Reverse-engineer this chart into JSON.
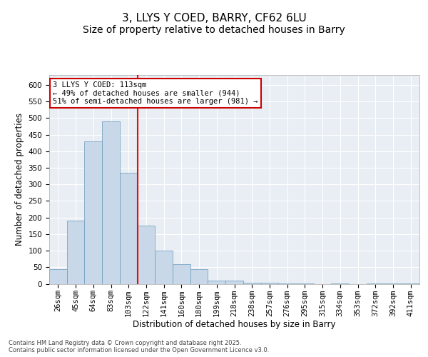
{
  "title1": "3, LLYS Y COED, BARRY, CF62 6LU",
  "title2": "Size of property relative to detached houses in Barry",
  "xlabel": "Distribution of detached houses by size in Barry",
  "ylabel": "Number of detached properties",
  "bar_color": "#c8d8e8",
  "bar_edge_color": "#6699bb",
  "background_color": "#e8eef4",
  "grid_color": "#ffffff",
  "red_line_x": 4,
  "annotation_text": "3 LLYS Y COED: 113sqm\n← 49% of detached houses are smaller (944)\n51% of semi-detached houses are larger (981) →",
  "annotation_box_color": "#ffffff",
  "annotation_box_edge": "#cc0000",
  "categories": [
    "26sqm",
    "45sqm",
    "64sqm",
    "83sqm",
    "103sqm",
    "122sqm",
    "141sqm",
    "160sqm",
    "180sqm",
    "199sqm",
    "218sqm",
    "238sqm",
    "257sqm",
    "276sqm",
    "295sqm",
    "315sqm",
    "334sqm",
    "353sqm",
    "372sqm",
    "392sqm",
    "411sqm"
  ],
  "values": [
    45,
    190,
    430,
    490,
    335,
    175,
    100,
    60,
    45,
    10,
    10,
    3,
    3,
    1,
    1,
    0,
    1,
    0,
    1,
    1,
    1
  ],
  "ylim": [
    0,
    630
  ],
  "yticks": [
    0,
    50,
    100,
    150,
    200,
    250,
    300,
    350,
    400,
    450,
    500,
    550,
    600
  ],
  "footnote": "Contains HM Land Registry data © Crown copyright and database right 2025.\nContains public sector information licensed under the Open Government Licence v3.0.",
  "title_fontsize": 11,
  "subtitle_fontsize": 10,
  "tick_fontsize": 7.5,
  "label_fontsize": 8.5,
  "annot_fontsize": 7.5,
  "footnote_fontsize": 6
}
